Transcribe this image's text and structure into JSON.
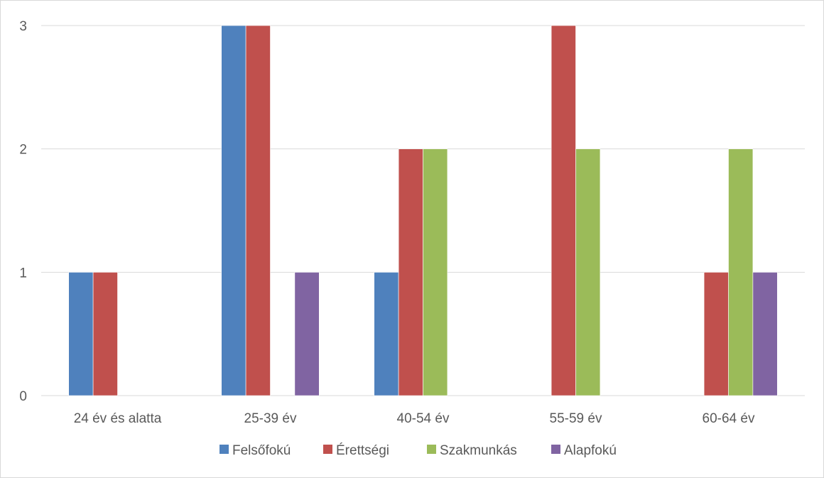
{
  "chart_data": {
    "type": "bar",
    "title": "",
    "xlabel": "",
    "ylabel": "",
    "categories": [
      "24 év és alatta",
      "25-39 év",
      "40-54 év",
      "55-59 év",
      "60-64 év"
    ],
    "series": [
      {
        "name": "Felsőfokú",
        "color": "#4f81bd",
        "values": [
          1,
          3,
          1,
          0,
          0
        ]
      },
      {
        "name": "Érettségi",
        "color": "#c0504d",
        "values": [
          1,
          3,
          2,
          3,
          1
        ]
      },
      {
        "name": "Szakmunkás",
        "color": "#9bbb59",
        "values": [
          0,
          0,
          2,
          2,
          2
        ]
      },
      {
        "name": "Alapfokú",
        "color": "#8064a2",
        "values": [
          0,
          1,
          0,
          0,
          1
        ]
      }
    ],
    "ylim": [
      0,
      3
    ],
    "yticks": [
      0,
      1,
      2,
      3
    ],
    "grid": true,
    "legend_position": "bottom"
  }
}
